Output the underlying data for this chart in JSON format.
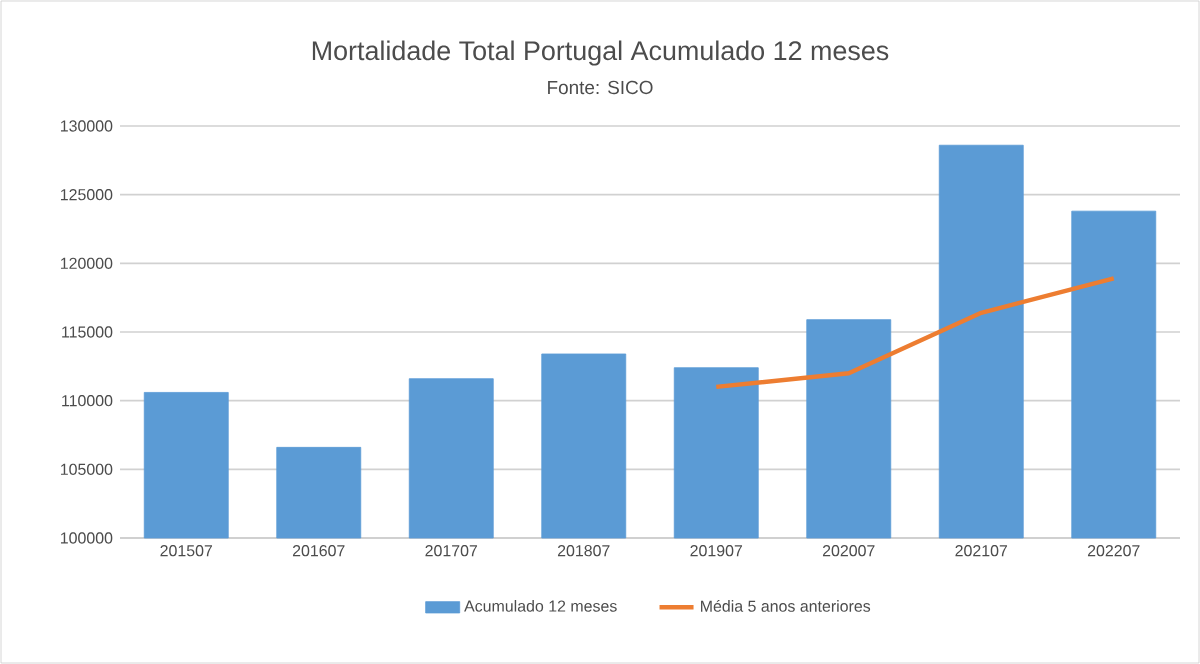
{
  "chart_data": {
    "type": "bar",
    "title": "Mortalidade Total Portugal Acumulado 12 meses",
    "subtitle": "Fonte: SICO",
    "categories": [
      "201507",
      "201607",
      "201707",
      "201807",
      "201907",
      "202007",
      "202107",
      "202207"
    ],
    "series": [
      {
        "name": "Acumulado 12 meses",
        "color": "#5b9bd5",
        "values": [
          110600,
          106600,
          111600,
          113400,
          112400,
          115900,
          128600,
          123800
        ]
      },
      {
        "name": "Média 5 anos anteriores",
        "type": "line",
        "color": "#ed7d31",
        "marker": "none",
        "line_style": "solid",
        "values": [
          null,
          null,
          null,
          null,
          111000,
          112000,
          116400,
          118900
        ]
      }
    ],
    "ylim": [
      100000,
      130000
    ],
    "yticks": [
      100000,
      105000,
      110000,
      115000,
      120000,
      125000,
      130000
    ],
    "grid": "y",
    "legend": "bottom"
  }
}
